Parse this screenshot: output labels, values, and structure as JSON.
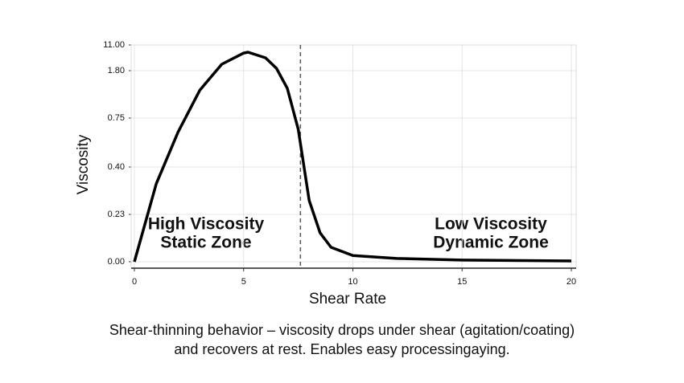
{
  "chart_data": {
    "type": "line",
    "x": [
      0,
      1,
      2,
      3,
      4,
      5,
      5.2,
      6,
      6.5,
      7,
      7.5,
      8,
      8.5,
      9,
      10,
      12,
      15,
      20
    ],
    "values": [
      0,
      0.34,
      0.65,
      1.37,
      4.1,
      8.1,
      8.4,
      6.4,
      2.66,
      1.41,
      0.67,
      0.28,
      0.14,
      0.07,
      0.03,
      0.016,
      0.008,
      0.004
    ],
    "color": "#000000",
    "xlabel": "Shear Rate",
    "ylabel": "Viscosity",
    "xlim": [
      0,
      20
    ],
    "xticks": [
      0,
      5,
      10,
      15,
      20
    ],
    "ylim": [
      0,
      11
    ],
    "yticks": [
      {
        "value": 0,
        "label": "0.00"
      },
      0.23,
      {
        "value": 0.4,
        "label": "0.40"
      },
      0.75,
      {
        "value": 1.8,
        "label": "1.80"
      },
      {
        "value": 11,
        "label": "11.00"
      }
    ],
    "threshold_x": 7.6,
    "grid": true,
    "annotations": [
      [
        "High Viscosity",
        "Static Zone"
      ],
      [
        "Low Viscosity",
        "Dynamic Zone"
      ]
    ],
    "caption": [
      "Shear-thinning behavior – viscosity drops under shear (agitation/coating)",
      "and recovers at rest. Enables easy processingaying."
    ]
  }
}
